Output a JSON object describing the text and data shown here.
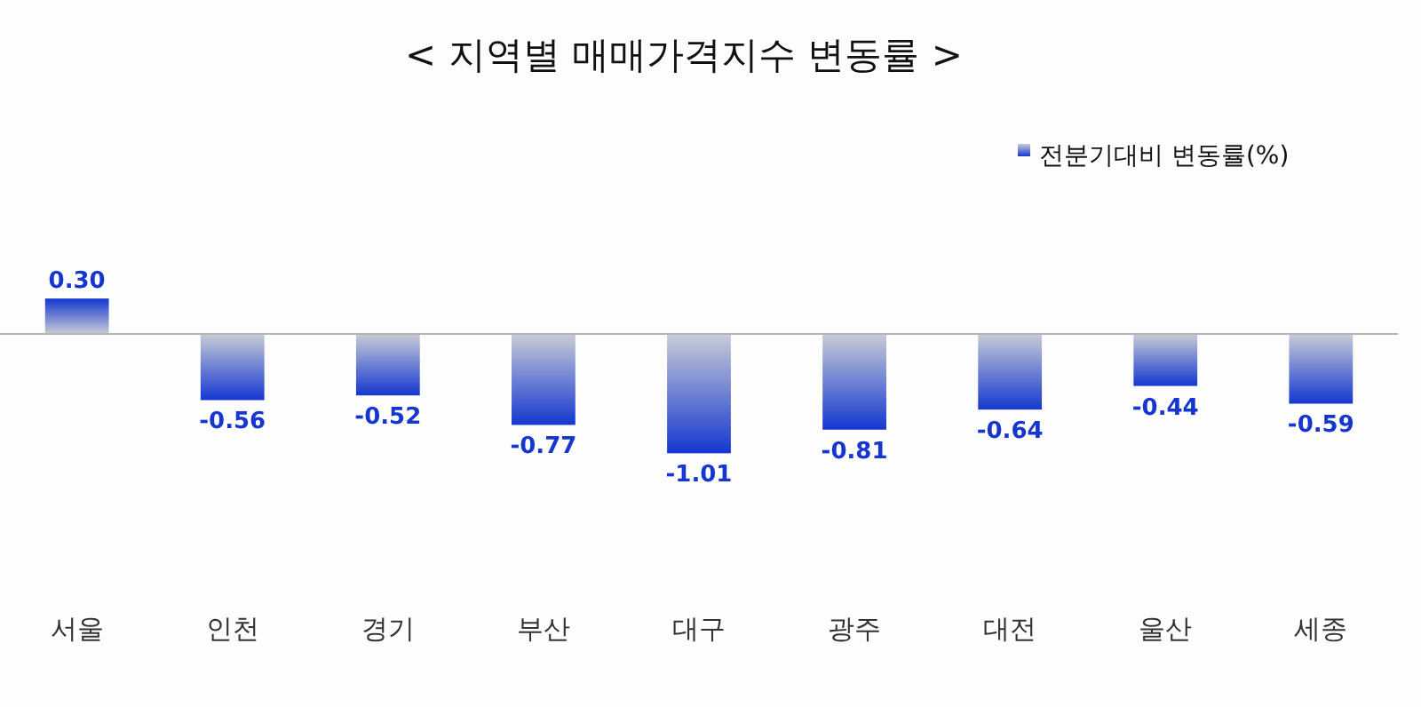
{
  "chart_data": {
    "type": "bar",
    "title": "< 지역별 매매가격지수 변동률 >",
    "categories": [
      "서울",
      "인천",
      "경기",
      "부산",
      "대구",
      "광주",
      "대전",
      "울산",
      "세종"
    ],
    "series": [
      {
        "name": "전분기대비 변동률(%)",
        "color": "#1537d0",
        "values": [
          0.3,
          -0.56,
          -0.52,
          -0.77,
          -1.01,
          -0.81,
          -0.64,
          -0.44,
          -0.59
        ],
        "value_labels": [
          "0.30",
          "-0.56",
          "-0.52",
          "-0.77",
          "-1.01",
          "-0.81",
          "-0.64",
          "-0.44",
          "-0.59"
        ]
      }
    ],
    "legend": "top right"
  }
}
